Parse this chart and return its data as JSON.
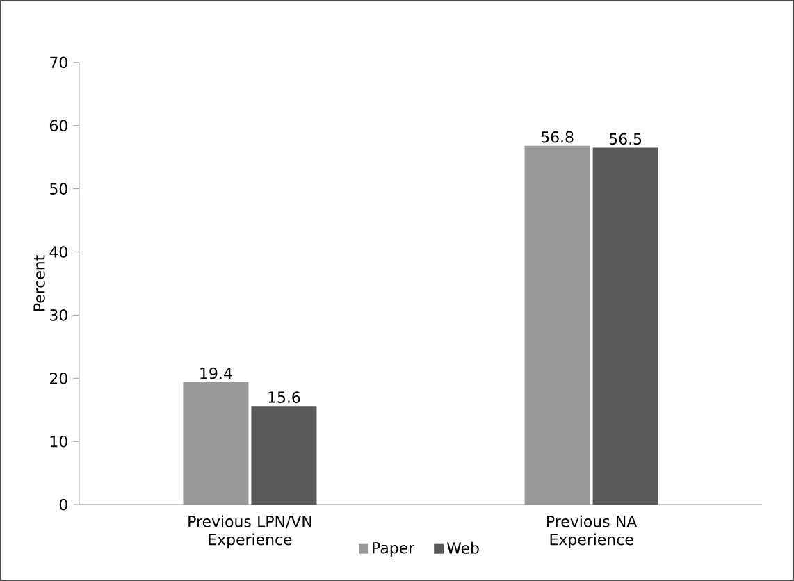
{
  "chart_data": {
    "type": "bar",
    "ylabel": "Percent",
    "categories": [
      "Previous LPN/VN Experience",
      "Previous NA Experience"
    ],
    "series": [
      {
        "name": "Paper",
        "color": "#999999",
        "values": [
          19.4,
          56.8
        ]
      },
      {
        "name": "Web",
        "color": "#595959",
        "values": [
          15.6,
          56.5
        ]
      }
    ],
    "ylim": [
      0,
      70
    ],
    "yticks": [
      0,
      10,
      20,
      30,
      40,
      50,
      60,
      70
    ],
    "grid": false,
    "legend": "bottom",
    "data_labels": true
  }
}
